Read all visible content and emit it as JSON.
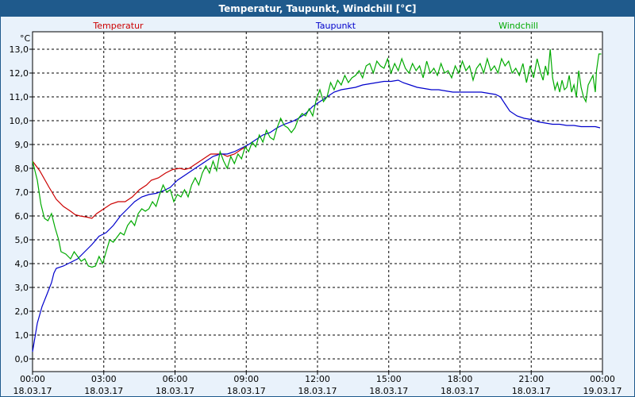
{
  "window": {
    "title": "Temperatur, Taupunkt, Windchill [°C]"
  },
  "chart_data": {
    "type": "line",
    "title": "Temperatur, Taupunkt, Windchill [°C]",
    "ylabel": "°C",
    "ylim": [
      0,
      13.5
    ],
    "grid": true,
    "legend_placement": "top",
    "y_ticks": [
      "0,0",
      "1,0",
      "2,0",
      "3,0",
      "4,0",
      "5,0",
      "6,0",
      "7,0",
      "8,0",
      "9,0",
      "10,0",
      "11,0",
      "12,0",
      "13,0"
    ],
    "y_tick_values": [
      0,
      1,
      2,
      3,
      4,
      5,
      6,
      7,
      8,
      9,
      10,
      11,
      12,
      13
    ],
    "x_ticks": [
      {
        "time": "00:00",
        "date": "18.03.17",
        "hour": 0
      },
      {
        "time": "03:00",
        "date": "18.03.17",
        "hour": 3
      },
      {
        "time": "06:00",
        "date": "18.03.17",
        "hour": 6
      },
      {
        "time": "09:00",
        "date": "18.03.17",
        "hour": 9
      },
      {
        "time": "12:00",
        "date": "18.03.17",
        "hour": 12
      },
      {
        "time": "15:00",
        "date": "18.03.17",
        "hour": 15
      },
      {
        "time": "18:00",
        "date": "18.03.17",
        "hour": 18
      },
      {
        "time": "21:00",
        "date": "18.03.17",
        "hour": 21
      },
      {
        "time": "00:00",
        "date": "19.03.17",
        "hour": 24
      }
    ],
    "xlim": [
      0,
      24
    ],
    "series": [
      {
        "name": "Temperatur",
        "color": "#cc0000",
        "points": [
          [
            0,
            8.3
          ],
          [
            0.3,
            7.9
          ],
          [
            0.7,
            7.2
          ],
          [
            1.0,
            6.7
          ],
          [
            1.3,
            6.4
          ],
          [
            1.6,
            6.2
          ],
          [
            1.8,
            6.05
          ],
          [
            2.0,
            6.0
          ],
          [
            2.3,
            5.95
          ],
          [
            2.5,
            5.9
          ],
          [
            2.7,
            6.1
          ],
          [
            3.0,
            6.3
          ],
          [
            3.3,
            6.5
          ],
          [
            3.6,
            6.6
          ],
          [
            3.9,
            6.6
          ],
          [
            4.2,
            6.8
          ],
          [
            4.5,
            7.1
          ],
          [
            4.8,
            7.3
          ],
          [
            5.0,
            7.5
          ],
          [
            5.3,
            7.6
          ],
          [
            5.6,
            7.8
          ],
          [
            5.9,
            7.95
          ],
          [
            6.2,
            8.0
          ],
          [
            6.4,
            7.95
          ],
          [
            6.6,
            8.0
          ],
          [
            6.9,
            8.2
          ],
          [
            7.2,
            8.4
          ],
          [
            7.5,
            8.6
          ],
          [
            7.8,
            8.6
          ],
          [
            8.0,
            8.6
          ],
          [
            8.2,
            8.5
          ],
          [
            8.5,
            8.6
          ],
          [
            8.8,
            8.8
          ],
          [
            9.0,
            8.9
          ]
        ]
      },
      {
        "name": "Taupunkt",
        "color": "#0000cc",
        "points": [
          [
            0,
            0.3
          ],
          [
            0.2,
            1.5
          ],
          [
            0.4,
            2.2
          ],
          [
            0.6,
            2.7
          ],
          [
            0.8,
            3.2
          ],
          [
            0.9,
            3.6
          ],
          [
            1.0,
            3.8
          ],
          [
            1.3,
            3.9
          ],
          [
            1.6,
            4.05
          ],
          [
            1.9,
            4.2
          ],
          [
            2.2,
            4.5
          ],
          [
            2.5,
            4.8
          ],
          [
            2.8,
            5.15
          ],
          [
            3.1,
            5.3
          ],
          [
            3.4,
            5.6
          ],
          [
            3.7,
            6.0
          ],
          [
            4.0,
            6.3
          ],
          [
            4.3,
            6.6
          ],
          [
            4.6,
            6.8
          ],
          [
            4.9,
            6.9
          ],
          [
            5.2,
            6.95
          ],
          [
            5.5,
            7.05
          ],
          [
            5.8,
            7.2
          ],
          [
            6.1,
            7.5
          ],
          [
            6.4,
            7.7
          ],
          [
            6.7,
            7.9
          ],
          [
            7.0,
            8.1
          ],
          [
            7.3,
            8.3
          ],
          [
            7.6,
            8.5
          ],
          [
            7.9,
            8.6
          ],
          [
            8.2,
            8.6
          ],
          [
            8.5,
            8.7
          ],
          [
            8.8,
            8.85
          ],
          [
            9.1,
            9.0
          ],
          [
            9.4,
            9.2
          ],
          [
            9.7,
            9.4
          ],
          [
            10.0,
            9.5
          ],
          [
            10.3,
            9.7
          ],
          [
            10.6,
            9.85
          ],
          [
            10.9,
            9.95
          ],
          [
            11.2,
            10.1
          ],
          [
            11.5,
            10.3
          ],
          [
            11.8,
            10.6
          ],
          [
            12.1,
            10.8
          ],
          [
            12.4,
            11.0
          ],
          [
            12.7,
            11.2
          ],
          [
            13.0,
            11.3
          ],
          [
            13.3,
            11.35
          ],
          [
            13.6,
            11.4
          ],
          [
            13.9,
            11.5
          ],
          [
            14.2,
            11.55
          ],
          [
            14.5,
            11.6
          ],
          [
            14.8,
            11.65
          ],
          [
            15.1,
            11.65
          ],
          [
            15.4,
            11.7
          ],
          [
            15.6,
            11.6
          ],
          [
            15.9,
            11.5
          ],
          [
            16.2,
            11.4
          ],
          [
            16.5,
            11.35
          ],
          [
            16.8,
            11.3
          ],
          [
            17.1,
            11.3
          ],
          [
            17.4,
            11.25
          ],
          [
            17.7,
            11.2
          ],
          [
            18.0,
            11.2
          ],
          [
            18.3,
            11.2
          ],
          [
            18.6,
            11.2
          ],
          [
            18.9,
            11.2
          ],
          [
            19.2,
            11.15
          ],
          [
            19.5,
            11.1
          ],
          [
            19.7,
            11.0
          ],
          [
            19.9,
            10.7
          ],
          [
            20.1,
            10.4
          ],
          [
            20.4,
            10.2
          ],
          [
            20.7,
            10.1
          ],
          [
            21.0,
            10.05
          ],
          [
            21.3,
            9.95
          ],
          [
            21.6,
            9.9
          ],
          [
            21.9,
            9.85
          ],
          [
            22.2,
            9.85
          ],
          [
            22.5,
            9.8
          ],
          [
            22.8,
            9.8
          ],
          [
            23.1,
            9.75
          ],
          [
            23.4,
            9.75
          ],
          [
            23.7,
            9.75
          ],
          [
            23.9,
            9.7
          ]
        ]
      },
      {
        "name": "Windchill",
        "color": "#00aa00",
        "points": [
          [
            0,
            8.3
          ],
          [
            0.2,
            7.5
          ],
          [
            0.35,
            6.5
          ],
          [
            0.5,
            5.9
          ],
          [
            0.65,
            5.8
          ],
          [
            0.8,
            6.1
          ],
          [
            0.95,
            5.5
          ],
          [
            1.1,
            5.0
          ],
          [
            1.2,
            4.5
          ],
          [
            1.4,
            4.4
          ],
          [
            1.6,
            4.2
          ],
          [
            1.75,
            4.5
          ],
          [
            1.9,
            4.3
          ],
          [
            2.05,
            4.1
          ],
          [
            2.2,
            4.2
          ],
          [
            2.35,
            3.9
          ],
          [
            2.5,
            3.85
          ],
          [
            2.65,
            3.9
          ],
          [
            2.8,
            4.3
          ],
          [
            2.95,
            4.0
          ],
          [
            3.1,
            4.5
          ],
          [
            3.25,
            5.0
          ],
          [
            3.4,
            4.9
          ],
          [
            3.55,
            5.1
          ],
          [
            3.7,
            5.3
          ],
          [
            3.85,
            5.2
          ],
          [
            4.0,
            5.6
          ],
          [
            4.15,
            5.8
          ],
          [
            4.3,
            5.6
          ],
          [
            4.45,
            6.1
          ],
          [
            4.6,
            6.3
          ],
          [
            4.75,
            6.2
          ],
          [
            4.9,
            6.3
          ],
          [
            5.05,
            6.6
          ],
          [
            5.2,
            6.4
          ],
          [
            5.35,
            6.9
          ],
          [
            5.5,
            7.3
          ],
          [
            5.65,
            7.0
          ],
          [
            5.8,
            7.1
          ],
          [
            5.95,
            6.6
          ],
          [
            6.1,
            6.9
          ],
          [
            6.25,
            6.8
          ],
          [
            6.4,
            7.1
          ],
          [
            6.55,
            6.8
          ],
          [
            6.7,
            7.3
          ],
          [
            6.85,
            7.6
          ],
          [
            7.0,
            7.3
          ],
          [
            7.15,
            7.8
          ],
          [
            7.3,
            8.1
          ],
          [
            7.45,
            7.8
          ],
          [
            7.6,
            8.3
          ],
          [
            7.75,
            7.9
          ],
          [
            7.9,
            8.7
          ],
          [
            8.05,
            8.3
          ],
          [
            8.2,
            8.0
          ],
          [
            8.35,
            8.5
          ],
          [
            8.5,
            8.2
          ],
          [
            8.65,
            8.6
          ],
          [
            8.8,
            8.4
          ],
          [
            8.95,
            8.9
          ],
          [
            9.1,
            8.7
          ],
          [
            9.25,
            9.1
          ],
          [
            9.4,
            8.9
          ],
          [
            9.55,
            9.4
          ],
          [
            9.7,
            9.1
          ],
          [
            9.85,
            9.6
          ],
          [
            10.0,
            9.3
          ],
          [
            10.15,
            9.2
          ],
          [
            10.3,
            9.7
          ],
          [
            10.45,
            10.1
          ],
          [
            10.6,
            9.8
          ],
          [
            10.75,
            9.7
          ],
          [
            10.9,
            9.5
          ],
          [
            11.05,
            9.7
          ],
          [
            11.2,
            10.1
          ],
          [
            11.35,
            10.3
          ],
          [
            11.5,
            10.2
          ],
          [
            11.65,
            10.5
          ],
          [
            11.8,
            10.2
          ],
          [
            11.95,
            10.9
          ],
          [
            12.1,
            11.3
          ],
          [
            12.25,
            10.8
          ],
          [
            12.4,
            11.0
          ],
          [
            12.55,
            11.6
          ],
          [
            12.7,
            11.3
          ],
          [
            12.85,
            11.7
          ],
          [
            13.0,
            11.5
          ],
          [
            13.15,
            11.9
          ],
          [
            13.3,
            11.6
          ],
          [
            13.45,
            11.8
          ],
          [
            13.6,
            11.9
          ],
          [
            13.75,
            12.1
          ],
          [
            13.9,
            11.8
          ],
          [
            14.05,
            12.3
          ],
          [
            14.2,
            12.4
          ],
          [
            14.35,
            12.0
          ],
          [
            14.5,
            12.5
          ],
          [
            14.65,
            12.3
          ],
          [
            14.8,
            12.2
          ],
          [
            14.95,
            12.6
          ],
          [
            15.1,
            12.0
          ],
          [
            15.25,
            12.4
          ],
          [
            15.4,
            12.1
          ],
          [
            15.55,
            12.6
          ],
          [
            15.7,
            12.2
          ],
          [
            15.85,
            12.0
          ],
          [
            16.0,
            12.4
          ],
          [
            16.15,
            12.1
          ],
          [
            16.3,
            12.3
          ],
          [
            16.45,
            11.8
          ],
          [
            16.6,
            12.5
          ],
          [
            16.75,
            12.0
          ],
          [
            16.9,
            12.2
          ],
          [
            17.05,
            11.9
          ],
          [
            17.2,
            12.4
          ],
          [
            17.35,
            12.0
          ],
          [
            17.5,
            12.1
          ],
          [
            17.65,
            11.8
          ],
          [
            17.8,
            12.3
          ],
          [
            17.95,
            12.0
          ],
          [
            18.1,
            12.5
          ],
          [
            18.25,
            12.1
          ],
          [
            18.4,
            12.3
          ],
          [
            18.55,
            11.7
          ],
          [
            18.7,
            12.2
          ],
          [
            18.85,
            12.4
          ],
          [
            19.0,
            12.0
          ],
          [
            19.15,
            12.6
          ],
          [
            19.3,
            12.1
          ],
          [
            19.45,
            12.3
          ],
          [
            19.6,
            12.0
          ],
          [
            19.75,
            12.6
          ],
          [
            19.9,
            12.3
          ],
          [
            20.05,
            12.5
          ],
          [
            20.2,
            12.0
          ],
          [
            20.35,
            12.2
          ],
          [
            20.5,
            11.9
          ],
          [
            20.65,
            12.4
          ],
          [
            20.8,
            11.6
          ],
          [
            20.95,
            12.3
          ],
          [
            21.1,
            11.8
          ],
          [
            21.25,
            12.6
          ],
          [
            21.4,
            12.0
          ],
          [
            21.5,
            11.7
          ],
          [
            21.6,
            12.3
          ],
          [
            21.7,
            11.9
          ],
          [
            21.8,
            13.0
          ],
          [
            21.9,
            11.8
          ],
          [
            22.0,
            11.3
          ],
          [
            22.1,
            11.6
          ],
          [
            22.2,
            11.2
          ],
          [
            22.3,
            11.7
          ],
          [
            22.4,
            11.3
          ],
          [
            22.5,
            11.4
          ],
          [
            22.6,
            11.9
          ],
          [
            22.7,
            11.2
          ],
          [
            22.8,
            11.5
          ],
          [
            22.9,
            11.0
          ],
          [
            23.0,
            12.1
          ],
          [
            23.1,
            11.4
          ],
          [
            23.2,
            11.0
          ],
          [
            23.3,
            10.8
          ],
          [
            23.4,
            11.5
          ],
          [
            23.5,
            11.7
          ],
          [
            23.6,
            11.9
          ],
          [
            23.7,
            11.2
          ],
          [
            23.75,
            12.1
          ],
          [
            23.85,
            12.8
          ],
          [
            23.95,
            12.8
          ]
        ]
      }
    ]
  }
}
